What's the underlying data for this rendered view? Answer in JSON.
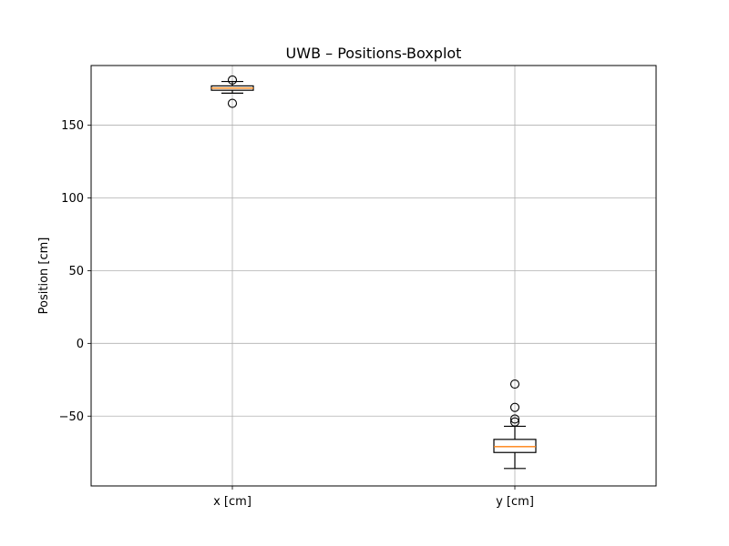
{
  "chart_data": {
    "type": "boxplot",
    "title": "UWB – Positions-Boxplot",
    "xlabel": "",
    "ylabel": "Position [cm]",
    "ylim": [
      -98,
      191
    ],
    "yticks": [
      {
        "value": 150,
        "label": "150"
      },
      {
        "value": 100,
        "label": "100"
      },
      {
        "value": 50,
        "label": "50"
      },
      {
        "value": 0,
        "label": "0"
      },
      {
        "value": -50,
        "label": "−50"
      }
    ],
    "categories": [
      "x [cm]",
      "y [cm]"
    ],
    "boxes": [
      {
        "name": "x [cm]",
        "whisker_low": 172,
        "q1": 174,
        "median": 175.5,
        "q3": 177,
        "whisker_high": 180,
        "outliers": [
          165,
          181
        ]
      },
      {
        "name": "y [cm]",
        "whisker_low": -86,
        "q1": -75,
        "median": -71,
        "q3": -66,
        "whisker_high": -57,
        "outliers": [
          -28,
          -44,
          -52,
          -54
        ]
      }
    ],
    "grid": true,
    "colors": {
      "median": "#ff7f0e",
      "box": "#000000",
      "grid": "#b0b0b0"
    }
  }
}
